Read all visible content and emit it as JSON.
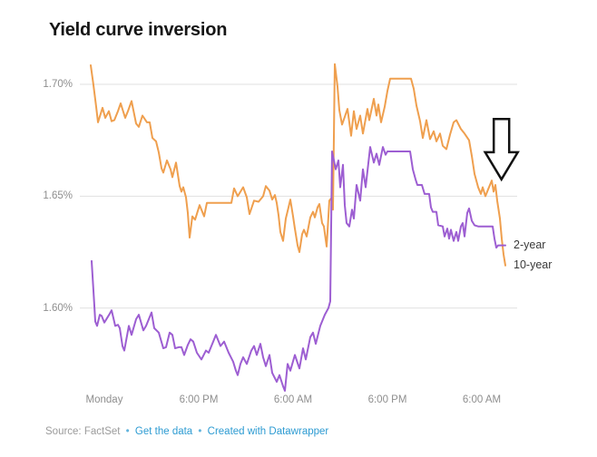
{
  "header": {
    "title": "Yield curve inversion"
  },
  "footer": {
    "source": "Source: FactSet",
    "separator": "•",
    "link_data": "Get the data",
    "link_credit": "Created with Datawrapper",
    "muted_color": "#9b9b9b",
    "link_color": "#2d9bd2"
  },
  "colors": {
    "grid": "#e0e0e0",
    "axis_text": "#8e8e8e",
    "title": "#161616",
    "annotation_stroke": "#111111",
    "annotation_fill": "#ffffff"
  },
  "chart_data": {
    "type": "line",
    "title": "Yield curve inversion",
    "x_axis": {
      "unit": "hours_since_monday_midnight",
      "range": [
        2.9,
        58.5
      ],
      "grid": false,
      "ticks": [
        {
          "value": 6,
          "label": "Monday"
        },
        {
          "value": 18,
          "label": "6:00 PM"
        },
        {
          "value": 30,
          "label": "6:00 AM"
        },
        {
          "value": 42,
          "label": "6:00 PM"
        },
        {
          "value": 54,
          "label": "6:00 AM"
        }
      ]
    },
    "y_axis": {
      "unit": "percent",
      "range": [
        1.555,
        1.715
      ],
      "grid": true,
      "ticks": [
        {
          "value": 1.7,
          "label": "1.70%"
        },
        {
          "value": 1.65,
          "label": "1.65%"
        },
        {
          "value": 1.6,
          "label": "1.60%"
        }
      ]
    },
    "legend_position": "line-end-labels",
    "annotation": {
      "type": "down-arrow",
      "x_value": 56.5,
      "v_top": 1.6845,
      "v_tip": 1.6575
    },
    "series": [
      {
        "name": "10-year",
        "color": "#ef9f4e",
        "points": [
          [
            4.27,
            1.7085
          ],
          [
            4.6,
            1.7
          ],
          [
            4.96,
            1.69
          ],
          [
            5.19,
            1.683
          ],
          [
            5.77,
            1.6895
          ],
          [
            6.12,
            1.685
          ],
          [
            6.58,
            1.688
          ],
          [
            6.92,
            1.6835
          ],
          [
            7.27,
            1.684
          ],
          [
            7.73,
            1.688
          ],
          [
            8.08,
            1.6915
          ],
          [
            8.65,
            1.685
          ],
          [
            9.0,
            1.688
          ],
          [
            9.46,
            1.6925
          ],
          [
            10.04,
            1.6825
          ],
          [
            10.38,
            1.681
          ],
          [
            10.85,
            1.686
          ],
          [
            11.42,
            1.683
          ],
          [
            11.77,
            1.683
          ],
          [
            12.12,
            1.676
          ],
          [
            12.58,
            1.6745
          ],
          [
            12.92,
            1.6695
          ],
          [
            13.27,
            1.6625
          ],
          [
            13.5,
            1.6605
          ],
          [
            13.96,
            1.666
          ],
          [
            14.42,
            1.662
          ],
          [
            14.65,
            1.6585
          ],
          [
            15.12,
            1.665
          ],
          [
            15.58,
            1.6545
          ],
          [
            15.81,
            1.652
          ],
          [
            16.04,
            1.654
          ],
          [
            16.38,
            1.6495
          ],
          [
            16.62,
            1.6425
          ],
          [
            16.85,
            1.6315
          ],
          [
            17.19,
            1.641
          ],
          [
            17.54,
            1.6395
          ],
          [
            18.12,
            1.646
          ],
          [
            18.69,
            1.641
          ],
          [
            19.04,
            1.647
          ],
          [
            22.15,
            1.647
          ],
          [
            22.5,
            1.6535
          ],
          [
            22.96,
            1.65
          ],
          [
            23.65,
            1.654
          ],
          [
            24.12,
            1.6495
          ],
          [
            24.46,
            1.642
          ],
          [
            25.04,
            1.648
          ],
          [
            25.62,
            1.6475
          ],
          [
            26.19,
            1.65
          ],
          [
            26.54,
            1.6545
          ],
          [
            27.0,
            1.6525
          ],
          [
            27.35,
            1.6485
          ],
          [
            27.69,
            1.6505
          ],
          [
            27.92,
            1.647
          ],
          [
            28.15,
            1.6415
          ],
          [
            28.38,
            1.634
          ],
          [
            28.73,
            1.63
          ],
          [
            29.08,
            1.64
          ],
          [
            29.42,
            1.645
          ],
          [
            29.65,
            1.6485
          ],
          [
            30.0,
            1.641
          ],
          [
            30.23,
            1.6355
          ],
          [
            30.58,
            1.628
          ],
          [
            30.81,
            1.625
          ],
          [
            31.15,
            1.633
          ],
          [
            31.38,
            1.635
          ],
          [
            31.73,
            1.632
          ],
          [
            32.19,
            1.6405
          ],
          [
            32.54,
            1.643
          ],
          [
            32.77,
            1.6405
          ],
          [
            33.12,
            1.645
          ],
          [
            33.35,
            1.6465
          ],
          [
            33.69,
            1.638
          ],
          [
            33.92,
            1.6365
          ],
          [
            34.27,
            1.6275
          ],
          [
            34.62,
            1.648
          ],
          [
            34.85,
            1.649
          ],
          [
            35.08,
            1.644
          ],
          [
            35.31,
            1.709
          ],
          [
            35.65,
            1.699
          ],
          [
            35.88,
            1.6885
          ],
          [
            36.23,
            1.682
          ],
          [
            36.58,
            1.6855
          ],
          [
            36.92,
            1.689
          ],
          [
            37.38,
            1.677
          ],
          [
            37.73,
            1.688
          ],
          [
            38.08,
            1.68
          ],
          [
            38.54,
            1.686
          ],
          [
            38.88,
            1.678
          ],
          [
            39.46,
            1.689
          ],
          [
            39.69,
            1.684
          ],
          [
            40.27,
            1.6935
          ],
          [
            40.62,
            1.686
          ],
          [
            40.85,
            1.691
          ],
          [
            41.19,
            1.683
          ],
          [
            41.65,
            1.69
          ],
          [
            42.0,
            1.697
          ],
          [
            42.35,
            1.7025
          ],
          [
            45.0,
            1.7025
          ],
          [
            45.35,
            1.698
          ],
          [
            45.69,
            1.6905
          ],
          [
            46.15,
            1.6835
          ],
          [
            46.5,
            1.676
          ],
          [
            46.96,
            1.684
          ],
          [
            47.42,
            1.6755
          ],
          [
            47.88,
            1.679
          ],
          [
            48.23,
            1.6745
          ],
          [
            48.69,
            1.678
          ],
          [
            49.04,
            1.6725
          ],
          [
            49.5,
            1.671
          ],
          [
            49.96,
            1.6775
          ],
          [
            50.42,
            1.683
          ],
          [
            50.77,
            1.684
          ],
          [
            51.35,
            1.68
          ],
          [
            51.81,
            1.678
          ],
          [
            52.38,
            1.675
          ],
          [
            52.73,
            1.668
          ],
          [
            53.08,
            1.66
          ],
          [
            53.54,
            1.654
          ],
          [
            53.88,
            1.651
          ],
          [
            54.12,
            1.654
          ],
          [
            54.46,
            1.65
          ],
          [
            54.81,
            1.653
          ],
          [
            55.27,
            1.657
          ],
          [
            55.5,
            1.652
          ],
          [
            55.73,
            1.655
          ],
          [
            55.96,
            1.648
          ],
          [
            56.31,
            1.64
          ],
          [
            56.54,
            1.631
          ],
          [
            56.77,
            1.624
          ],
          [
            57.0,
            1.619
          ]
        ]
      },
      {
        "name": "2-year",
        "color": "#9d5ed2",
        "points": [
          [
            4.38,
            1.621
          ],
          [
            4.73,
            1.601
          ],
          [
            4.85,
            1.594
          ],
          [
            5.08,
            1.592
          ],
          [
            5.42,
            1.597
          ],
          [
            5.65,
            1.5965
          ],
          [
            6.0,
            1.5935
          ],
          [
            6.35,
            1.5955
          ],
          [
            6.69,
            1.5975
          ],
          [
            6.92,
            1.599
          ],
          [
            7.38,
            1.592
          ],
          [
            7.73,
            1.5925
          ],
          [
            7.96,
            1.591
          ],
          [
            8.31,
            1.583
          ],
          [
            8.54,
            1.581
          ],
          [
            9.12,
            1.592
          ],
          [
            9.46,
            1.588
          ],
          [
            10.04,
            1.595
          ],
          [
            10.38,
            1.597
          ],
          [
            10.96,
            1.59
          ],
          [
            11.31,
            1.592
          ],
          [
            11.54,
            1.594
          ],
          [
            12.0,
            1.598
          ],
          [
            12.35,
            1.591
          ],
          [
            12.92,
            1.589
          ],
          [
            13.5,
            1.582
          ],
          [
            13.85,
            1.5825
          ],
          [
            14.31,
            1.589
          ],
          [
            14.65,
            1.588
          ],
          [
            15.0,
            1.582
          ],
          [
            15.46,
            1.5825
          ],
          [
            15.81,
            1.5825
          ],
          [
            16.15,
            1.579
          ],
          [
            16.62,
            1.5835
          ],
          [
            16.96,
            1.586
          ],
          [
            17.31,
            1.585
          ],
          [
            17.77,
            1.58
          ],
          [
            18.35,
            1.577
          ],
          [
            18.92,
            1.581
          ],
          [
            19.27,
            1.58
          ],
          [
            19.85,
            1.585
          ],
          [
            20.19,
            1.588
          ],
          [
            20.77,
            1.583
          ],
          [
            21.23,
            1.585
          ],
          [
            21.81,
            1.58
          ],
          [
            22.38,
            1.576
          ],
          [
            22.73,
            1.572
          ],
          [
            22.96,
            1.57
          ],
          [
            23.31,
            1.575
          ],
          [
            23.65,
            1.578
          ],
          [
            24.12,
            1.575
          ],
          [
            24.69,
            1.581
          ],
          [
            25.04,
            1.583
          ],
          [
            25.38,
            1.579
          ],
          [
            25.85,
            1.584
          ],
          [
            26.19,
            1.578
          ],
          [
            26.54,
            1.574
          ],
          [
            27.0,
            1.579
          ],
          [
            27.35,
            1.571
          ],
          [
            27.92,
            1.567
          ],
          [
            28.27,
            1.57
          ],
          [
            28.73,
            1.565
          ],
          [
            28.96,
            1.563
          ],
          [
            29.31,
            1.575
          ],
          [
            29.65,
            1.572
          ],
          [
            30.23,
            1.579
          ],
          [
            30.81,
            1.573
          ],
          [
            31.27,
            1.582
          ],
          [
            31.62,
            1.577
          ],
          [
            32.19,
            1.587
          ],
          [
            32.54,
            1.589
          ],
          [
            32.88,
            1.584
          ],
          [
            33.46,
            1.592
          ],
          [
            34.04,
            1.597
          ],
          [
            34.5,
            1.6
          ],
          [
            34.73,
            1.603
          ],
          [
            34.96,
            1.67
          ],
          [
            35.42,
            1.662
          ],
          [
            35.77,
            1.666
          ],
          [
            36.0,
            1.654
          ],
          [
            36.35,
            1.664
          ],
          [
            36.58,
            1.646
          ],
          [
            36.81,
            1.638
          ],
          [
            37.15,
            1.6365
          ],
          [
            37.5,
            1.644
          ],
          [
            37.73,
            1.64
          ],
          [
            38.08,
            1.655
          ],
          [
            38.54,
            1.648
          ],
          [
            38.88,
            1.662
          ],
          [
            39.23,
            1.654
          ],
          [
            39.81,
            1.672
          ],
          [
            40.27,
            1.665
          ],
          [
            40.62,
            1.669
          ],
          [
            40.96,
            1.664
          ],
          [
            41.42,
            1.672
          ],
          [
            41.77,
            1.6685
          ],
          [
            42.0,
            1.67
          ],
          [
            44.88,
            1.67
          ],
          [
            45.23,
            1.662
          ],
          [
            45.58,
            1.6575
          ],
          [
            45.81,
            1.655
          ],
          [
            46.38,
            1.655
          ],
          [
            46.73,
            1.651
          ],
          [
            47.31,
            1.651
          ],
          [
            47.54,
            1.645
          ],
          [
            47.77,
            1.643
          ],
          [
            48.23,
            1.643
          ],
          [
            48.46,
            1.637
          ],
          [
            49.04,
            1.6365
          ],
          [
            49.27,
            1.632
          ],
          [
            49.62,
            1.6355
          ],
          [
            49.85,
            1.631
          ],
          [
            50.08,
            1.635
          ],
          [
            50.42,
            1.63
          ],
          [
            50.77,
            1.634
          ],
          [
            51.0,
            1.63
          ],
          [
            51.35,
            1.6365
          ],
          [
            51.58,
            1.638
          ],
          [
            51.81,
            1.632
          ],
          [
            52.15,
            1.6425
          ],
          [
            52.38,
            1.6445
          ],
          [
            52.73,
            1.639
          ],
          [
            53.08,
            1.637
          ],
          [
            53.54,
            1.6365
          ],
          [
            55.38,
            1.6365
          ],
          [
            55.62,
            1.631
          ],
          [
            55.85,
            1.627
          ],
          [
            56.08,
            1.628
          ],
          [
            57.0,
            1.628
          ]
        ]
      }
    ]
  }
}
